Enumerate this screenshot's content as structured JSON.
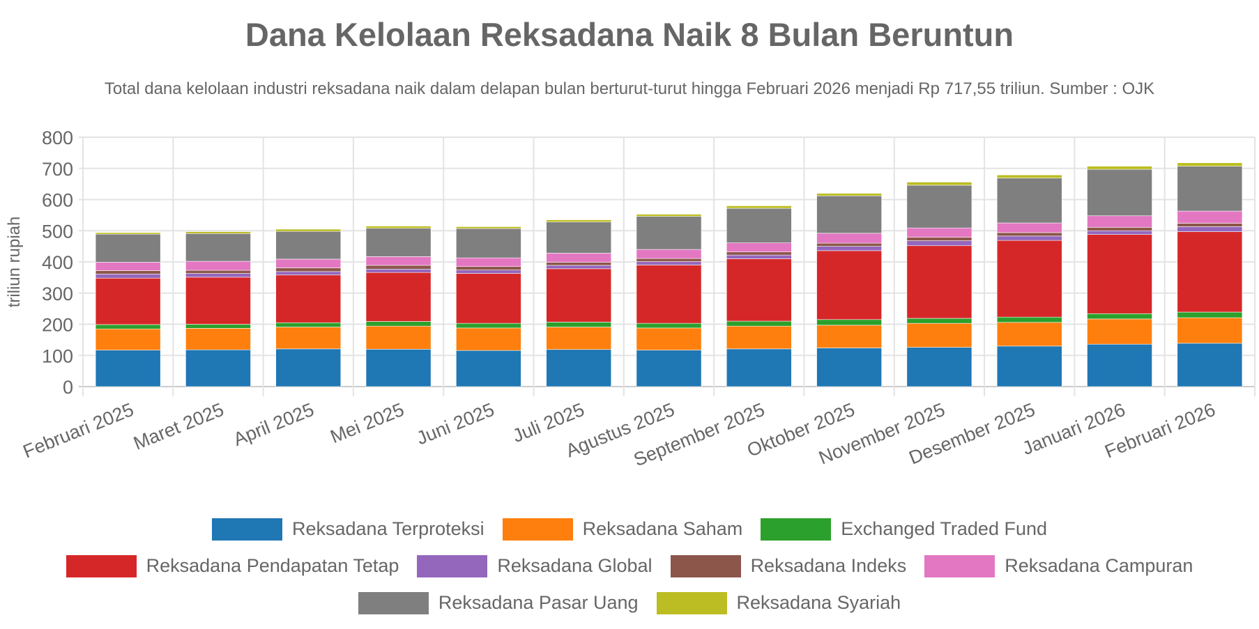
{
  "chart_data": {
    "type": "bar",
    "stacked": true,
    "title": "Dana Kelolaan Reksadana Naik 8 Bulan Beruntun",
    "subtitle": "Total dana kelolaan industri reksadana naik dalam delapan bulan berturut-turut hingga Februari 2026 menjadi Rp 717,55 triliun. Sumber : OJK",
    "xlabel": "",
    "ylabel": "triliun rupiah",
    "ylim": [
      0,
      800
    ],
    "yticks": [
      "0",
      "100",
      "200",
      "300",
      "400",
      "500",
      "600",
      "700",
      "800"
    ],
    "grid": true,
    "legend_position": "bottom",
    "categories": [
      "Februari 2025",
      "Maret 2025",
      "April 2025",
      "Mei 2025",
      "Juni 2025",
      "Juli 2025",
      "Agustus 2025",
      "September 2025",
      "Oktober 2025",
      "November 2025",
      "Desember 2025",
      "Januari 2026",
      "Februari 2026"
    ],
    "series": [
      {
        "name": "Reksadana Terproteksi",
        "color": "#1f77b4",
        "values": [
          117,
          118,
          121,
          120,
          116,
          119,
          117,
          121,
          124,
          126,
          130,
          136,
          139
        ]
      },
      {
        "name": "Reksadana Saham",
        "color": "#ff7f0e",
        "values": [
          68,
          69,
          70,
          74,
          72,
          72,
          71,
          73,
          73,
          77,
          76,
          81,
          82
        ]
      },
      {
        "name": "Exchanged Traded Fund",
        "color": "#2ca02c",
        "values": [
          14,
          13,
          14,
          15,
          15,
          16,
          15,
          16,
          18,
          16,
          17,
          17,
          18
        ]
      },
      {
        "name": "Reksadana Pendapatan Tetap",
        "color": "#d62728",
        "values": [
          149,
          151,
          153,
          157,
          160,
          171,
          187,
          200,
          221,
          233,
          246,
          254,
          258
        ]
      },
      {
        "name": "Reksadana Global",
        "color": "#9467bd",
        "values": [
          13,
          12,
          11,
          11,
          11,
          11,
          11,
          12,
          14,
          16,
          14,
          12,
          16
        ]
      },
      {
        "name": "Reksadana Indeks",
        "color": "#8c564b",
        "values": [
          11,
          10,
          12,
          12,
          11,
          10,
          10,
          10,
          10,
          11,
          11,
          11,
          11
        ]
      },
      {
        "name": "Reksadana Campuran",
        "color": "#e377c2",
        "values": [
          27,
          29,
          28,
          28,
          28,
          29,
          29,
          29,
          32,
          30,
          31,
          37,
          39
        ]
      },
      {
        "name": "Reksadana Pasar Uang",
        "color": "#7f7f7f",
        "values": [
          90,
          89,
          89,
          91,
          94,
          100,
          106,
          111,
          120,
          137,
          144,
          149,
          144
        ]
      },
      {
        "name": "Reksadana Syariah",
        "color": "#bcbd22",
        "values": [
          5,
          6,
          7,
          7,
          6,
          7,
          7,
          8,
          8,
          10,
          10,
          10,
          11
        ]
      }
    ]
  }
}
